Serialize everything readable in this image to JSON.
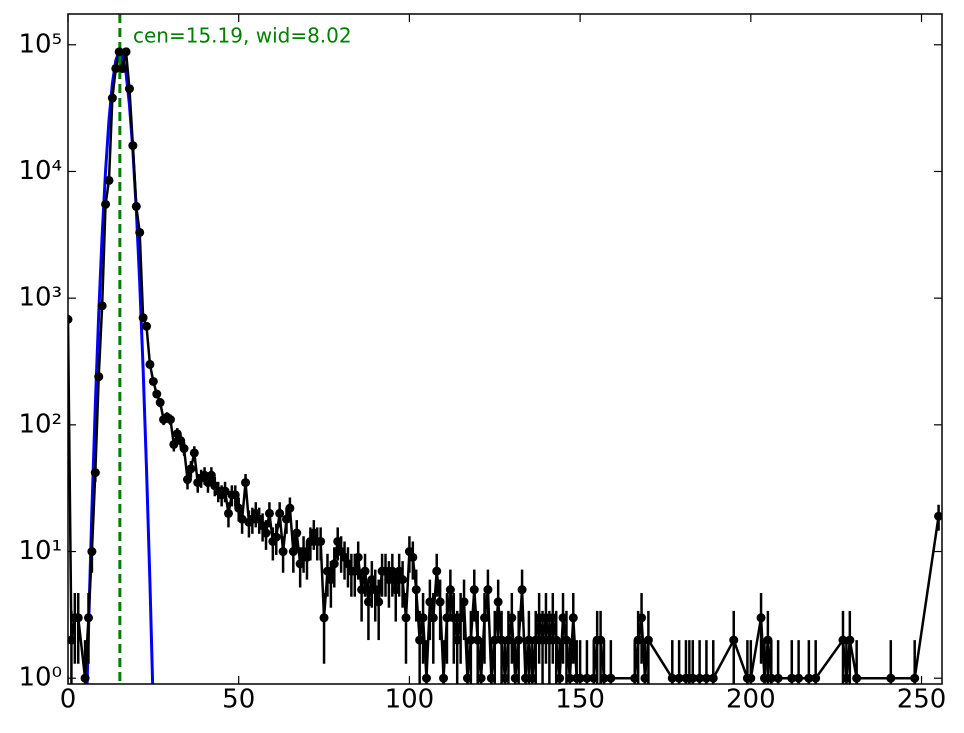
{
  "chart_data": {
    "type": "errorbar",
    "annotation": "cen=15.19, wid=8.02",
    "annotation_color": "#008000",
    "log_y": true,
    "xlim": [
      0,
      256
    ],
    "ylim": [
      0.9,
      175000
    ],
    "xticks": [
      0,
      50,
      100,
      150,
      200,
      250
    ],
    "yticks": [
      {
        "value": 1,
        "label": "10⁰"
      },
      {
        "value": 10,
        "label": "10¹"
      },
      {
        "value": 100,
        "label": "10²"
      },
      {
        "value": 1000,
        "label": "10³"
      },
      {
        "value": 10000,
        "label": "10⁴"
      },
      {
        "value": 100000,
        "label": "10⁵"
      }
    ],
    "color": "#000000",
    "x": [
      0,
      1,
      2,
      3,
      5,
      6,
      7,
      8,
      9,
      10,
      11,
      12,
      13,
      14,
      15,
      16,
      17,
      18,
      19,
      20,
      21,
      22,
      23,
      24,
      25,
      26,
      27,
      28,
      29,
      30,
      31,
      32,
      33,
      34,
      35,
      36,
      37,
      38,
      39,
      40,
      41,
      42,
      43,
      44,
      45,
      46,
      47,
      48,
      49,
      50,
      51,
      52,
      53,
      54,
      55,
      56,
      57,
      58,
      59,
      60,
      61,
      62,
      63,
      64,
      65,
      66,
      67,
      68,
      69,
      70,
      71,
      72,
      73,
      74,
      75,
      76,
      77,
      78,
      79,
      80,
      81,
      82,
      83,
      84,
      85,
      86,
      87,
      88,
      89,
      90,
      91,
      92,
      93,
      94,
      95,
      96,
      97,
      98,
      99,
      100,
      101,
      102,
      103,
      104,
      105,
      106,
      107,
      108,
      109,
      110,
      111,
      112,
      113,
      114,
      115,
      116,
      117,
      118,
      119,
      120,
      121,
      122,
      123,
      124,
      125,
      126,
      127,
      128,
      129,
      130,
      131,
      132,
      133,
      134,
      135,
      136,
      137,
      138,
      139,
      140,
      141,
      142,
      143,
      144,
      145,
      146,
      147,
      148,
      149,
      150,
      152,
      154,
      155,
      156,
      157,
      159,
      166,
      167,
      168,
      169,
      170,
      177,
      179,
      181,
      182,
      183,
      185,
      187,
      189,
      195,
      199,
      200,
      203,
      204,
      205,
      206,
      208,
      212,
      214,
      217,
      219,
      227,
      228,
      229,
      231,
      241,
      248,
      255
    ],
    "values": [
      680,
      2,
      3,
      3,
      1,
      3,
      10,
      42,
      240,
      870,
      5500,
      8500,
      38000,
      65000,
      88000,
      65000,
      88000,
      45000,
      16000,
      5300,
      3300,
      700,
      600,
      300,
      220,
      175,
      150,
      110,
      115,
      110,
      70,
      85,
      75,
      65,
      37,
      45,
      60,
      35,
      38,
      40,
      35,
      40,
      33,
      30,
      28,
      30,
      20,
      28,
      28,
      22,
      18,
      35,
      17,
      18,
      20,
      18,
      16,
      14,
      20,
      12,
      13,
      20,
      10,
      18,
      22,
      10,
      14,
      8,
      10,
      9,
      12,
      14,
      12,
      12,
      3,
      7,
      6,
      8,
      12,
      10,
      9,
      8,
      7,
      7,
      9,
      5,
      7,
      4,
      6,
      5,
      4,
      7,
      7,
      6,
      7,
      5,
      7,
      6,
      3,
      10,
      9,
      5,
      2,
      3,
      1,
      4,
      3,
      7,
      4,
      1,
      3,
      5,
      3,
      2,
      3,
      4,
      1,
      2,
      5,
      2,
      1,
      3,
      5,
      1,
      2,
      4,
      2,
      1,
      2,
      3,
      1,
      2,
      5,
      1,
      2,
      1,
      2,
      3,
      2,
      3,
      2,
      3,
      2,
      1,
      3,
      2,
      1,
      3,
      1,
      1,
      1,
      1,
      2,
      2,
      1,
      1,
      1,
      2,
      3,
      1,
      2,
      1,
      1,
      1,
      1,
      1,
      1,
      1,
      1,
      2,
      1,
      1,
      3,
      1,
      2,
      1,
      1,
      1,
      1,
      1,
      1,
      2,
      1,
      2,
      1,
      1,
      1,
      19
    ],
    "errors": [
      26,
      1.4,
      1.7,
      1.7,
      1,
      1.7,
      3.2,
      6.5,
      15.5,
      29.5,
      74,
      92,
      195,
      255,
      297,
      255,
      297,
      212,
      126,
      73,
      57,
      26.5,
      24.5,
      17.3,
      14.8,
      13.2,
      12.2,
      10.5,
      10.7,
      10.5,
      8.4,
      9.2,
      8.7,
      8.1,
      6.1,
      6.7,
      7.7,
      5.9,
      6.2,
      6.3,
      5.9,
      6.3,
      5.7,
      5.5,
      5.3,
      5.5,
      4.5,
      5.3,
      5.3,
      4.7,
      4.2,
      5.9,
      4.1,
      4.2,
      4.5,
      4.2,
      4,
      3.7,
      4.5,
      3.5,
      3.6,
      4.5,
      3.2,
      4.2,
      4.7,
      3.2,
      3.7,
      2.8,
      3.2,
      3,
      3.5,
      3.7,
      3.5,
      3.5,
      1.7,
      2.6,
      2.4,
      2.8,
      3.5,
      3.2,
      3,
      2.8,
      2.6,
      2.6,
      3,
      2.2,
      2.6,
      2,
      2.4,
      2.2,
      2,
      2.6,
      2.6,
      2.4,
      2.6,
      2.2,
      2.6,
      2.4,
      1.7,
      3.2,
      3,
      2.2,
      1.4,
      1.7,
      1,
      2,
      1.7,
      2.6,
      2,
      1,
      1.7,
      2.2,
      1.7,
      1.4,
      1.7,
      2,
      1,
      1.4,
      2.2,
      1.4,
      1,
      1.7,
      2.2,
      1,
      1.4,
      2,
      1.4,
      1,
      1.4,
      1.7,
      1,
      1.4,
      2.2,
      1,
      1.4,
      1,
      1.4,
      1.7,
      1.4,
      1.7,
      1.4,
      1.7,
      1.4,
      1,
      1.7,
      1.4,
      1,
      1.7,
      1,
      1,
      1,
      1,
      1.4,
      1.4,
      1,
      1,
      1,
      1.4,
      1.7,
      1,
      1.4,
      1,
      1,
      1,
      1,
      1,
      1,
      1,
      1,
      1.4,
      1,
      1,
      1.7,
      1,
      1.4,
      1,
      1,
      1,
      1,
      1,
      1,
      1.4,
      1,
      1.4,
      1,
      1,
      1,
      4.4
    ],
    "fit_color": "#0000ff",
    "fit_x": [
      5,
      6,
      7,
      8,
      9,
      10,
      11,
      12,
      13,
      14,
      15,
      16,
      17,
      18,
      19,
      20,
      21,
      22,
      23,
      24,
      25
    ],
    "fit_values": [
      0.21,
      2.4,
      21,
      142,
      756,
      3120,
      10080,
      25300,
      49500,
      75400,
      89600,
      82900,
      59800,
      33600,
      14700,
      5040,
      1330,
      277,
      44.6,
      5.7,
      0.55
    ],
    "vline": {
      "value": 15.19,
      "color": "#008000"
    }
  }
}
